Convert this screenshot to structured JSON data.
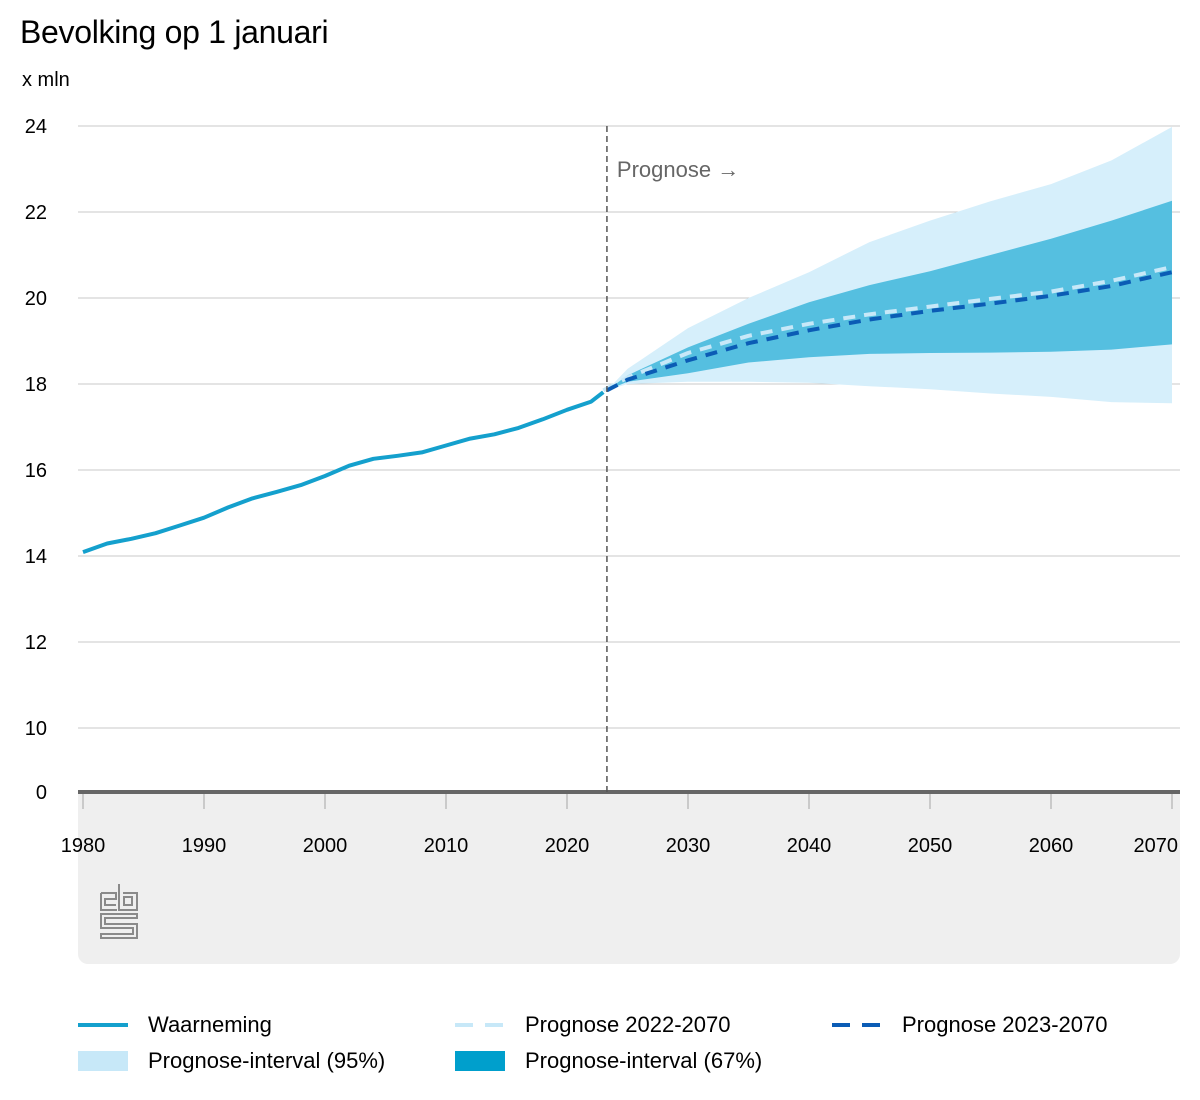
{
  "title": "Bevolking op 1 januari",
  "unit_label": "x mln",
  "annotation": "Prognose →",
  "logo": "cbs-logo-icon",
  "colors": {
    "observed": "#14a0cd",
    "prognosis_2022": "#c7e8f8",
    "prognosis_2023": "#0b5cb5",
    "interval_95": "#d6effb",
    "interval_67": "#55bfe0",
    "interval_67_legend": "#009fcc",
    "grid": "#c8c8c8",
    "axis": "#666666",
    "divider": "#555555",
    "annotation_text": "#666666"
  },
  "legend": [
    {
      "label": "Waarneming",
      "type": "line",
      "key": "observed"
    },
    {
      "label": "Prognose 2022-2070",
      "type": "dash",
      "key": "prognosis_2022"
    },
    {
      "label": "Prognose 2023-2070",
      "type": "dash",
      "key": "prognosis_2023"
    },
    {
      "label": "Prognose-interval (95%)",
      "type": "area",
      "key": "interval_95"
    },
    {
      "label": "Prognose-interval (67%)",
      "type": "area",
      "key": "interval_67_legend"
    }
  ],
  "chart_data": {
    "type": "line",
    "title": "Bevolking op 1 januari",
    "ylabel": "x mln",
    "xlabel": "",
    "xlim": [
      1980,
      2070
    ],
    "ylim": [
      10,
      24
    ],
    "y_axis_break": true,
    "y_ticks": [
      0,
      10,
      12,
      14,
      16,
      18,
      20,
      22,
      24
    ],
    "x_ticks": [
      1980,
      1990,
      2000,
      2010,
      2020,
      2030,
      2040,
      2050,
      2060,
      2070
    ],
    "grid": true,
    "legend_position": "bottom",
    "forecast_start": 2023.3,
    "forecast_annotation": "Prognose →",
    "series": [
      {
        "name": "Waarneming",
        "style": "solid",
        "x": [
          1980,
          1982,
          1984,
          1986,
          1988,
          1990,
          1992,
          1994,
          1996,
          1998,
          2000,
          2002,
          2004,
          2006,
          2008,
          2010,
          2012,
          2014,
          2016,
          2018,
          2020,
          2022,
          2023
        ],
        "y": [
          14.09,
          14.29,
          14.4,
          14.53,
          14.71,
          14.89,
          15.13,
          15.34,
          15.49,
          15.65,
          15.86,
          16.1,
          16.26,
          16.33,
          16.41,
          16.57,
          16.73,
          16.83,
          16.98,
          17.18,
          17.4,
          17.59,
          17.81
        ]
      },
      {
        "name": "Prognose 2022-2070",
        "style": "dashed",
        "x": [
          2023,
          2025,
          2030,
          2035,
          2040,
          2045,
          2050,
          2055,
          2060,
          2065,
          2070
        ],
        "y": [
          17.85,
          18.15,
          18.72,
          19.12,
          19.4,
          19.62,
          19.8,
          19.98,
          20.15,
          20.4,
          20.72
        ]
      },
      {
        "name": "Prognose 2023-2070",
        "style": "dashed",
        "x": [
          2023.3,
          2025,
          2030,
          2035,
          2040,
          2045,
          2050,
          2055,
          2060,
          2065,
          2070
        ],
        "y": [
          17.85,
          18.1,
          18.55,
          18.95,
          19.25,
          19.5,
          19.7,
          19.87,
          20.05,
          20.28,
          20.6
        ]
      }
    ],
    "intervals": [
      {
        "name": "Prognose-interval (95%)",
        "x": [
          2023.3,
          2025,
          2030,
          2035,
          2040,
          2045,
          2050,
          2055,
          2060,
          2065,
          2070
        ],
        "lower": [
          17.85,
          18.0,
          18.05,
          18.05,
          18.03,
          17.95,
          17.88,
          17.78,
          17.7,
          17.58,
          17.55
        ],
        "upper": [
          17.85,
          18.35,
          19.3,
          20.0,
          20.6,
          21.3,
          21.8,
          22.25,
          22.65,
          23.2,
          23.98
        ]
      },
      {
        "name": "Prognose-interval (67%)",
        "x": [
          2023.3,
          2025,
          2030,
          2035,
          2040,
          2045,
          2050,
          2055,
          2060,
          2065,
          2070
        ],
        "lower": [
          17.85,
          18.05,
          18.25,
          18.5,
          18.62,
          18.7,
          18.72,
          18.73,
          18.75,
          18.8,
          18.92
        ],
        "upper": [
          17.85,
          18.2,
          18.85,
          19.4,
          19.9,
          20.3,
          20.62,
          21.0,
          21.38,
          21.8,
          22.26
        ]
      }
    ]
  }
}
